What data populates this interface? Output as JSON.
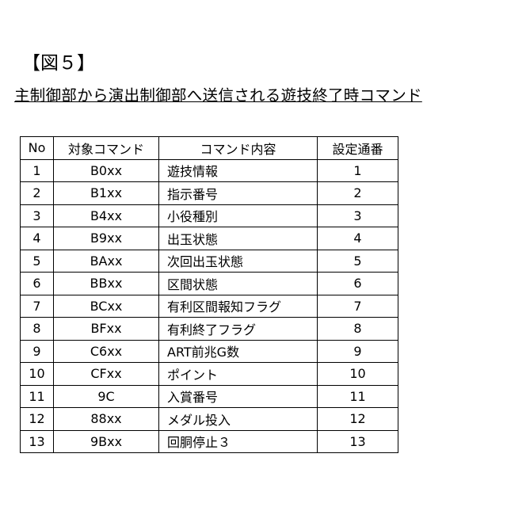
{
  "header": {
    "title": "【図５】",
    "subtitle": "主制御部から演出制御部へ送信される遊技終了時コマンド"
  },
  "table": {
    "header": [
      "No",
      "対象コマンド",
      "コマンド内容",
      "設定通番"
    ],
    "rows": [
      [
        1,
        "B0xx",
        "遊技情報",
        1
      ],
      [
        2,
        "B1xx",
        "指示番号",
        2
      ],
      [
        3,
        "B4xx",
        "小役種別",
        3
      ],
      [
        4,
        "B9xx",
        "出玉状態",
        4
      ],
      [
        5,
        "BAxx",
        "次回出玉状態",
        5
      ],
      [
        6,
        "BBxx",
        "区間状態",
        6
      ],
      [
        7,
        "BCxx",
        "有利区間報知フラグ",
        7
      ],
      [
        8,
        "BFxx",
        "有利終了フラグ",
        8
      ],
      [
        9,
        "C6xx",
        "ART前兆G数",
        9
      ],
      [
        10,
        "CFxx",
        "ポイント",
        10
      ],
      [
        11,
        "9C",
        "入賞番号",
        11
      ],
      [
        12,
        "88xx",
        "メダル投入",
        12
      ],
      [
        13,
        "9Bxx",
        "回胴停止３",
        13
      ]
    ]
  }
}
